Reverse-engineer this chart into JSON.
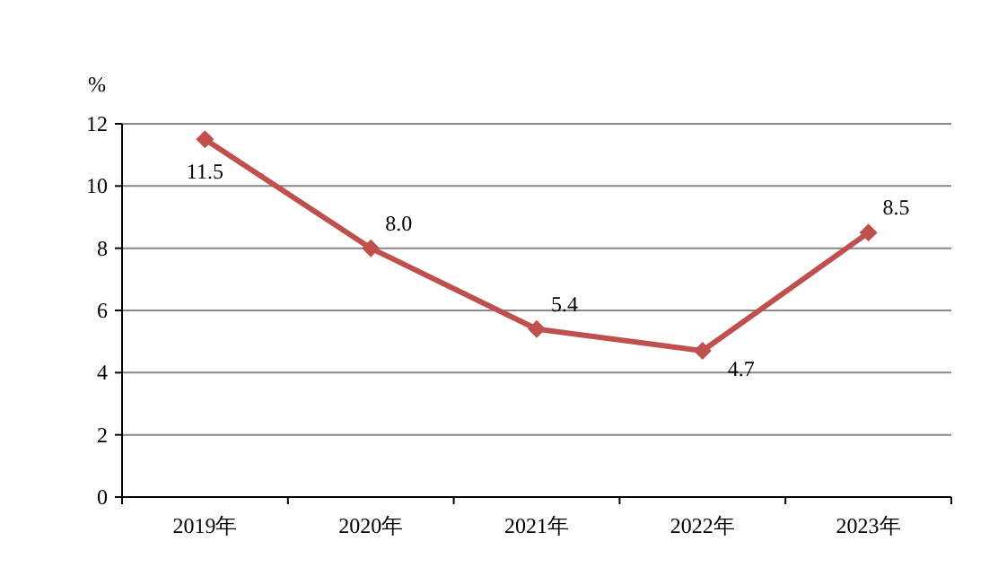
{
  "chart_data": {
    "type": "line",
    "ylabel": "%",
    "categories": [
      "2019年",
      "2020年",
      "2021年",
      "2022年",
      "2023年"
    ],
    "series": [
      {
        "color": "#c0504d",
        "values": [
          11.5,
          8.0,
          5.4,
          4.7,
          8.5
        ],
        "value_labels": [
          "11.5",
          "8.0",
          "5.4",
          "4.7",
          "8.5"
        ]
      }
    ],
    "ylim": [
      0,
      12
    ],
    "yticks": [
      0,
      2,
      4,
      6,
      8,
      10,
      12
    ],
    "grid": "y",
    "marker": "diamond",
    "line_style": "solid"
  }
}
